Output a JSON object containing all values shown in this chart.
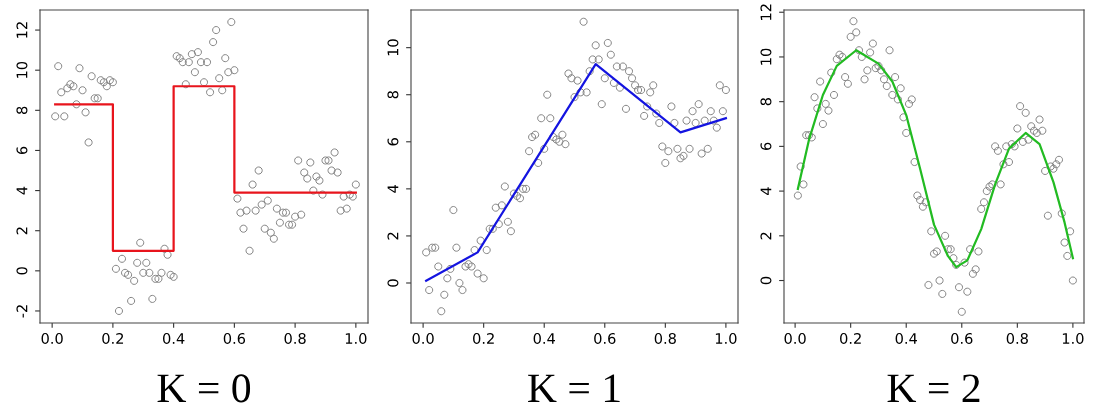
{
  "chart_data": [
    {
      "type": "scatter",
      "title": "K = 0",
      "grid": false,
      "x": [
        0.01,
        0.02,
        0.03,
        0.04,
        0.05,
        0.06,
        0.07,
        0.08,
        0.09,
        0.1,
        0.11,
        0.12,
        0.13,
        0.14,
        0.15,
        0.16,
        0.17,
        0.18,
        0.19,
        0.2,
        0.21,
        0.22,
        0.23,
        0.24,
        0.25,
        0.26,
        0.27,
        0.28,
        0.29,
        0.3,
        0.31,
        0.32,
        0.33,
        0.34,
        0.35,
        0.36,
        0.37,
        0.38,
        0.39,
        0.4,
        0.41,
        0.42,
        0.43,
        0.44,
        0.45,
        0.46,
        0.47,
        0.48,
        0.49,
        0.5,
        0.51,
        0.52,
        0.53,
        0.54,
        0.55,
        0.56,
        0.57,
        0.58,
        0.59,
        0.6,
        0.61,
        0.62,
        0.63,
        0.64,
        0.65,
        0.66,
        0.67,
        0.68,
        0.69,
        0.7,
        0.71,
        0.72,
        0.73,
        0.74,
        0.75,
        0.76,
        0.77,
        0.78,
        0.79,
        0.8,
        0.81,
        0.82,
        0.83,
        0.84,
        0.85,
        0.86,
        0.87,
        0.88,
        0.89,
        0.9,
        0.91,
        0.92,
        0.93,
        0.94,
        0.95,
        0.96,
        0.97,
        0.98,
        0.99,
        1.0
      ],
      "xlim": [
        -0.04,
        1.04
      ],
      "xticks": [
        {
          "value": 0,
          "label": "0.0"
        },
        {
          "value": 0.2,
          "label": "0.2"
        },
        {
          "value": 0.4,
          "label": "0.4"
        },
        {
          "value": 0.6,
          "label": "0.6"
        },
        {
          "value": 0.8,
          "label": "0.8"
        },
        {
          "value": 1,
          "label": "1.0"
        }
      ],
      "ylim": [
        -2.6,
        13.0
      ],
      "yticks": [
        -2,
        0,
        2,
        4,
        6,
        8,
        10,
        12
      ],
      "series": [
        {
          "marker": "circle",
          "color": "#808080",
          "values": [
            7.7,
            10.2,
            8.9,
            7.7,
            9.1,
            9.3,
            9.2,
            8.3,
            10.1,
            9.0,
            7.9,
            6.4,
            9.7,
            8.6,
            8.6,
            9.5,
            9.4,
            9.2,
            9.5,
            9.4,
            0.1,
            -2.0,
            0.6,
            -0.1,
            -0.2,
            -1.5,
            -0.5,
            0.4,
            1.4,
            -0.1,
            0.4,
            -0.1,
            -1.4,
            -0.4,
            -0.4,
            -0.1,
            1.1,
            0.8,
            -0.2,
            -0.3,
            10.7,
            10.6,
            10.4,
            9.3,
            10.4,
            10.8,
            9.9,
            10.9,
            10.4,
            9.4,
            10.4,
            8.9,
            11.4,
            12.0,
            9.6,
            9.0,
            10.6,
            9.9,
            12.4,
            10.0,
            3.6,
            2.9,
            2.1,
            3.0,
            1.0,
            4.3,
            3.0,
            5.0,
            3.3,
            2.1,
            3.5,
            1.9,
            1.6,
            3.1,
            2.4,
            2.9,
            2.9,
            2.3,
            2.3,
            2.7,
            5.5,
            2.8,
            4.9,
            4.6,
            5.4,
            4.0,
            4.7,
            4.5,
            3.8,
            5.5,
            5.5,
            5.0,
            5.9,
            4.9,
            3.0,
            3.7,
            3.1,
            3.8,
            3.7,
            4.3
          ]
        },
        {
          "type": "step",
          "color": "#e8141c",
          "x": [
            0.01,
            0.2,
            0.4,
            0.6,
            1.0
          ],
          "values": [
            8.3,
            1.0,
            9.2,
            3.9,
            3.9
          ]
        }
      ]
    },
    {
      "type": "scatter",
      "title": "K = 1",
      "grid": false,
      "x": [
        0.01,
        0.02,
        0.03,
        0.04,
        0.05,
        0.06,
        0.07,
        0.08,
        0.09,
        0.1,
        0.11,
        0.12,
        0.13,
        0.14,
        0.15,
        0.16,
        0.17,
        0.18,
        0.19,
        0.2,
        0.21,
        0.22,
        0.23,
        0.24,
        0.25,
        0.26,
        0.27,
        0.28,
        0.29,
        0.3,
        0.31,
        0.32,
        0.33,
        0.34,
        0.35,
        0.36,
        0.37,
        0.38,
        0.39,
        0.4,
        0.41,
        0.42,
        0.43,
        0.44,
        0.45,
        0.46,
        0.47,
        0.48,
        0.49,
        0.5,
        0.51,
        0.52,
        0.53,
        0.54,
        0.55,
        0.56,
        0.57,
        0.58,
        0.59,
        0.6,
        0.61,
        0.62,
        0.63,
        0.64,
        0.65,
        0.66,
        0.67,
        0.68,
        0.69,
        0.7,
        0.71,
        0.72,
        0.73,
        0.74,
        0.75,
        0.76,
        0.77,
        0.78,
        0.79,
        0.8,
        0.81,
        0.82,
        0.83,
        0.84,
        0.85,
        0.86,
        0.87,
        0.88,
        0.89,
        0.9,
        0.91,
        0.92,
        0.93,
        0.94,
        0.95,
        0.96,
        0.97,
        0.98,
        0.99,
        1.0
      ],
      "xlim": [
        -0.04,
        1.04
      ],
      "xticks": [
        {
          "value": 0,
          "label": "0.0"
        },
        {
          "value": 0.2,
          "label": "0.2"
        },
        {
          "value": 0.4,
          "label": "0.4"
        },
        {
          "value": 0.6,
          "label": "0.6"
        },
        {
          "value": 0.8,
          "label": "0.8"
        },
        {
          "value": 1,
          "label": "1.0"
        }
      ],
      "ylim": [
        -1.7,
        11.6
      ],
      "yticks": [
        0,
        2,
        4,
        6,
        8,
        10
      ],
      "series": [
        {
          "marker": "circle",
          "color": "#808080",
          "values": [
            1.3,
            -0.3,
            1.5,
            1.5,
            0.7,
            -1.2,
            -0.5,
            0.2,
            0.6,
            3.1,
            1.5,
            0.0,
            -0.3,
            0.7,
            0.8,
            0.7,
            1.4,
            0.4,
            1.8,
            0.2,
            1.4,
            2.3,
            2.3,
            3.2,
            2.5,
            3.3,
            4.1,
            2.6,
            2.2,
            3.8,
            3.7,
            3.6,
            4.0,
            4.0,
            5.6,
            6.2,
            6.3,
            5.1,
            7.0,
            5.7,
            8.0,
            7.0,
            6.2,
            6.1,
            6.0,
            6.3,
            5.9,
            8.9,
            8.7,
            7.9,
            8.6,
            8.1,
            11.1,
            8.1,
            9.0,
            9.5,
            10.1,
            9.5,
            7.6,
            8.7,
            10.2,
            9.7,
            8.5,
            9.2,
            8.3,
            9.2,
            7.4,
            9.0,
            8.7,
            8.4,
            8.2,
            8.2,
            7.1,
            7.5,
            8.1,
            8.4,
            7.2,
            6.8,
            5.8,
            5.1,
            5.6,
            7.5,
            6.8,
            5.7,
            5.3,
            5.4,
            6.9,
            5.7,
            7.3,
            6.8,
            7.6,
            5.5,
            6.9,
            5.7,
            7.3,
            6.9,
            6.6,
            8.4,
            7.3,
            8.2
          ]
        },
        {
          "type": "line",
          "color": "#1414e0",
          "x": [
            0.01,
            0.18,
            0.57,
            0.85,
            1.0
          ],
          "values": [
            0.1,
            1.3,
            9.3,
            6.4,
            7.0
          ]
        }
      ]
    },
    {
      "type": "scatter",
      "title": "K = 2",
      "grid": false,
      "x": [
        0.01,
        0.02,
        0.03,
        0.04,
        0.05,
        0.06,
        0.07,
        0.08,
        0.09,
        0.1,
        0.11,
        0.12,
        0.13,
        0.14,
        0.15,
        0.16,
        0.17,
        0.18,
        0.19,
        0.2,
        0.21,
        0.22,
        0.23,
        0.24,
        0.25,
        0.26,
        0.27,
        0.28,
        0.29,
        0.3,
        0.31,
        0.32,
        0.33,
        0.34,
        0.35,
        0.36,
        0.37,
        0.38,
        0.39,
        0.4,
        0.41,
        0.42,
        0.43,
        0.44,
        0.45,
        0.46,
        0.47,
        0.48,
        0.49,
        0.5,
        0.51,
        0.52,
        0.53,
        0.54,
        0.55,
        0.56,
        0.57,
        0.58,
        0.59,
        0.6,
        0.61,
        0.62,
        0.63,
        0.64,
        0.65,
        0.66,
        0.67,
        0.68,
        0.69,
        0.7,
        0.71,
        0.72,
        0.73,
        0.74,
        0.75,
        0.76,
        0.77,
        0.78,
        0.79,
        0.8,
        0.81,
        0.82,
        0.83,
        0.84,
        0.85,
        0.86,
        0.87,
        0.88,
        0.89,
        0.9,
        0.91,
        0.92,
        0.93,
        0.94,
        0.95,
        0.96,
        0.97,
        0.98,
        0.99,
        1.0
      ],
      "xlim": [
        -0.04,
        1.04
      ],
      "xticks": [
        {
          "value": 0,
          "label": "0.0"
        },
        {
          "value": 0.2,
          "label": "0.2"
        },
        {
          "value": 0.4,
          "label": "0.4"
        },
        {
          "value": 0.6,
          "label": "0.6"
        },
        {
          "value": 0.8,
          "label": "0.8"
        },
        {
          "value": 1,
          "label": "1.0"
        }
      ],
      "ylim": [
        -1.9,
        12.1
      ],
      "yticks": [
        0,
        2,
        4,
        6,
        8,
        10,
        12
      ],
      "series": [
        {
          "marker": "circle",
          "color": "#808080",
          "values": [
            3.8,
            5.1,
            4.3,
            6.5,
            6.5,
            6.4,
            8.2,
            7.7,
            8.9,
            7.0,
            7.9,
            7.6,
            9.3,
            8.3,
            9.9,
            10.1,
            10.0,
            9.1,
            8.8,
            10.9,
            11.6,
            11.1,
            10.3,
            10.0,
            9.0,
            9.4,
            10.2,
            10.6,
            9.5,
            9.6,
            9.4,
            9.0,
            8.7,
            10.3,
            8.3,
            9.1,
            8.1,
            8.6,
            7.3,
            6.6,
            7.9,
            8.1,
            5.3,
            3.8,
            3.6,
            3.3,
            3.5,
            -0.2,
            2.2,
            1.2,
            1.3,
            0.0,
            -0.6,
            2.0,
            1.4,
            1.4,
            1.0,
            0.7,
            -0.3,
            -1.4,
            0.8,
            -0.5,
            1.4,
            0.3,
            0.5,
            1.3,
            3.2,
            3.5,
            4.0,
            4.2,
            4.3,
            6.0,
            5.8,
            4.3,
            5.2,
            6.0,
            5.3,
            6.1,
            6.0,
            6.8,
            7.8,
            6.2,
            7.5,
            6.3,
            6.9,
            6.7,
            6.6,
            7.2,
            6.7,
            4.9,
            2.9,
            5.1,
            5.0,
            5.2,
            5.4,
            3.0,
            1.7,
            1.1,
            2.2,
            0.0
          ]
        },
        {
          "type": "line",
          "color": "#22bb22",
          "x": [
            0.01,
            0.05,
            0.1,
            0.15,
            0.22,
            0.3,
            0.35,
            0.4,
            0.45,
            0.5,
            0.55,
            0.58,
            0.62,
            0.67,
            0.72,
            0.77,
            0.83,
            0.88,
            0.93,
            0.97,
            1.0
          ],
          "values": [
            4.1,
            6.3,
            8.3,
            9.6,
            10.3,
            9.7,
            8.9,
            7.4,
            5.0,
            2.5,
            1.1,
            0.6,
            0.9,
            2.3,
            4.3,
            5.9,
            6.6,
            6.1,
            4.4,
            2.6,
            1.0
          ]
        }
      ]
    }
  ]
}
